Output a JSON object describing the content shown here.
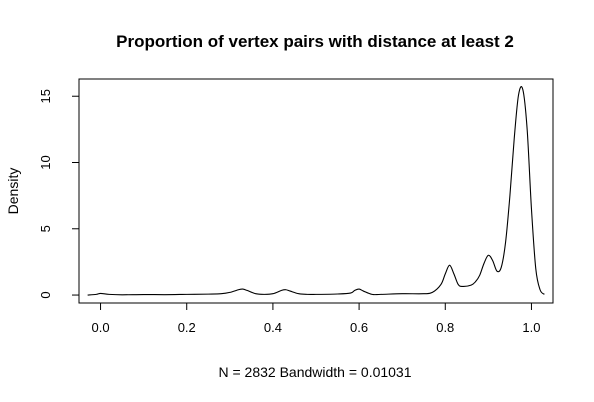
{
  "chart_data": {
    "type": "line",
    "title": "Proportion of vertex pairs with distance at least 2",
    "xlabel": "N = 2832   Bandwidth = 0.01031",
    "ylabel": "Density",
    "xlim": [
      -0.05,
      1.05
    ],
    "ylim": [
      -0.6,
      16.3
    ],
    "x_ticks": [
      0.0,
      0.2,
      0.4,
      0.6,
      0.8,
      1.0
    ],
    "x_tick_labels": [
      "0.0",
      "0.2",
      "0.4",
      "0.6",
      "0.8",
      "1.0"
    ],
    "y_ticks": [
      0,
      5,
      10,
      15
    ],
    "y_tick_labels": [
      "0",
      "5",
      "10",
      "15"
    ],
    "grid": false,
    "legend": "none",
    "series": [
      {
        "color": "#000000",
        "x": [
          -0.03,
          -0.01,
          0.0,
          0.02,
          0.05,
          0.1,
          0.15,
          0.2,
          0.25,
          0.28,
          0.3,
          0.32,
          0.33,
          0.34,
          0.36,
          0.38,
          0.4,
          0.42,
          0.43,
          0.44,
          0.46,
          0.48,
          0.5,
          0.55,
          0.58,
          0.59,
          0.6,
          0.61,
          0.63,
          0.65,
          0.7,
          0.75,
          0.77,
          0.79,
          0.8,
          0.81,
          0.82,
          0.83,
          0.84,
          0.86,
          0.87,
          0.88,
          0.89,
          0.9,
          0.91,
          0.92,
          0.93,
          0.94,
          0.95,
          0.96,
          0.97,
          0.98,
          0.99,
          1.0,
          1.01,
          1.02,
          1.03
        ],
        "y": [
          0.0,
          0.05,
          0.12,
          0.05,
          0.02,
          0.04,
          0.03,
          0.05,
          0.07,
          0.1,
          0.2,
          0.4,
          0.45,
          0.35,
          0.1,
          0.05,
          0.1,
          0.35,
          0.4,
          0.3,
          0.1,
          0.05,
          0.05,
          0.08,
          0.15,
          0.35,
          0.45,
          0.3,
          0.05,
          0.05,
          0.1,
          0.1,
          0.2,
          0.8,
          1.6,
          2.25,
          1.6,
          0.8,
          0.65,
          0.75,
          1.0,
          1.5,
          2.4,
          3.0,
          2.6,
          1.8,
          2.1,
          4.0,
          7.5,
          11.8,
          15.1,
          15.5,
          12.5,
          6.5,
          2.0,
          0.4,
          0.05
        ]
      }
    ]
  }
}
